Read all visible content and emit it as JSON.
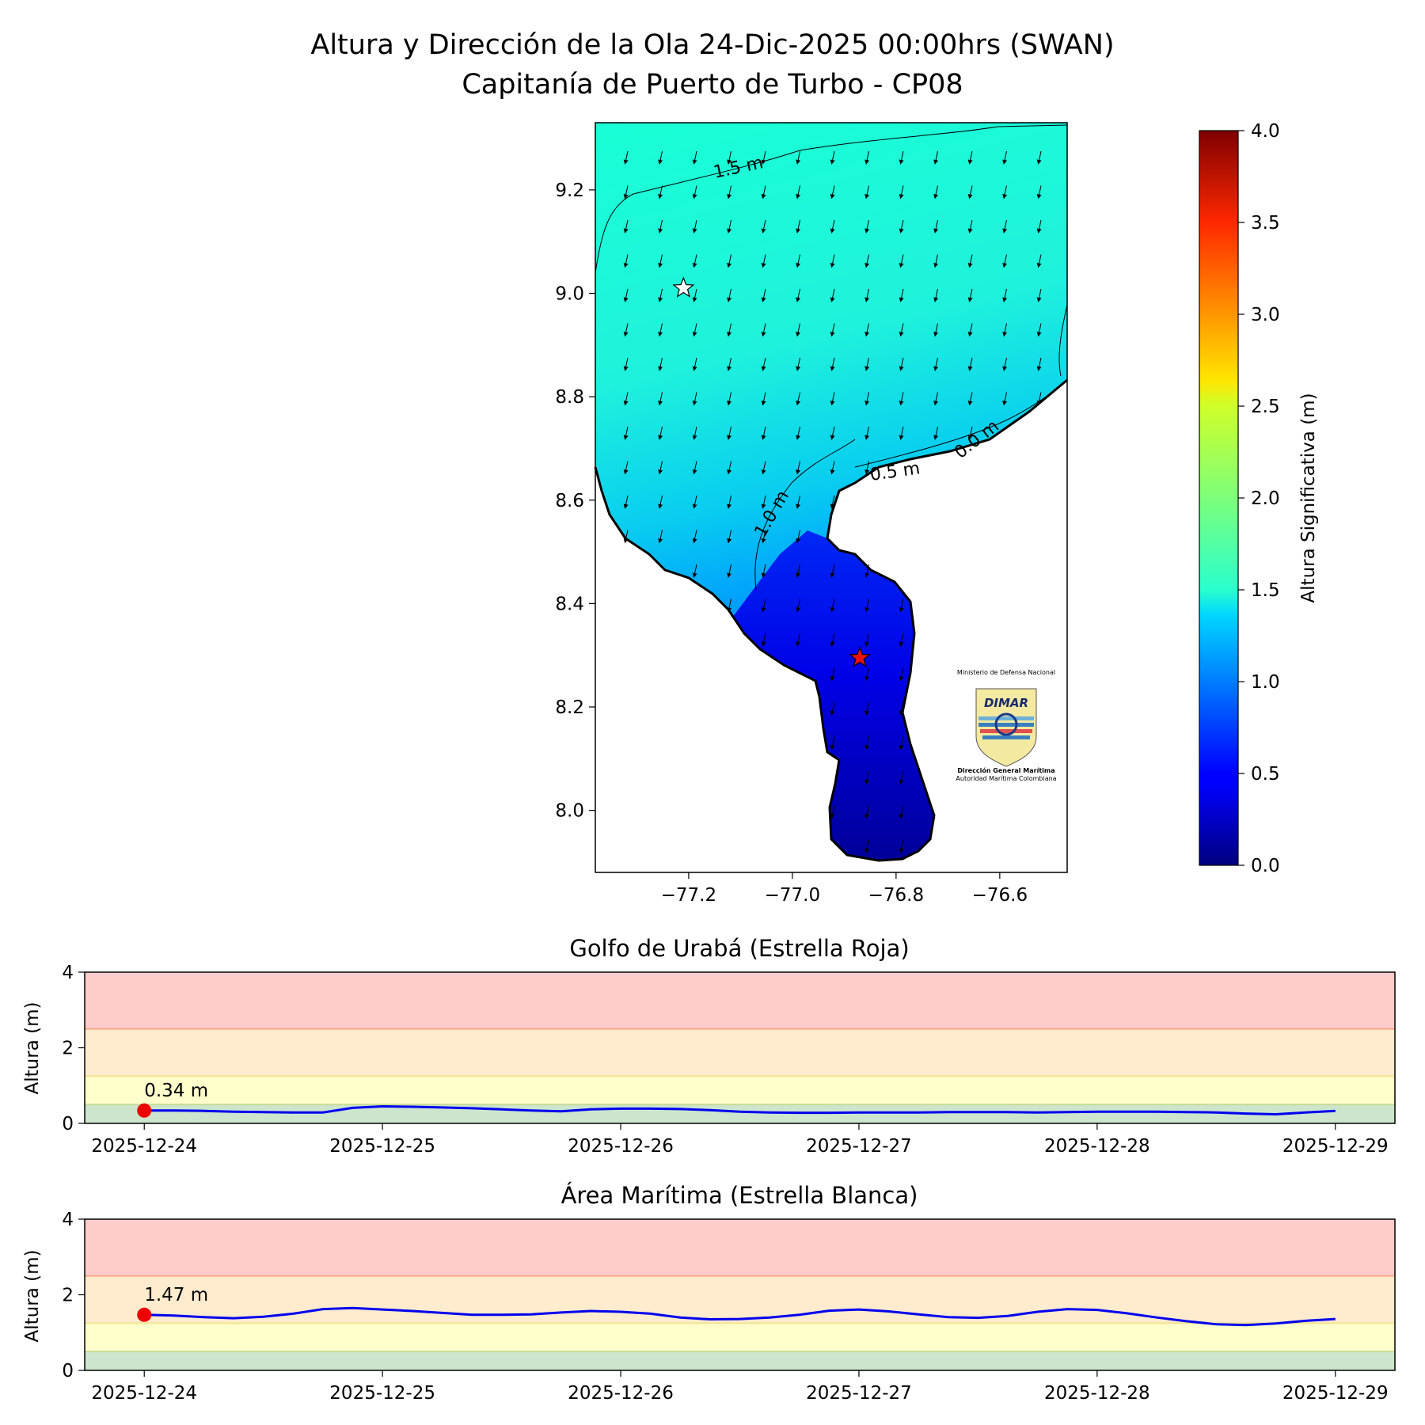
{
  "figure": {
    "title_line1": "Altura y Dirección de la Ola 24-Dic-2025 00:00hrs (SWAN)",
    "title_line2": "Capitanía de Puerto de Turbo - CP08"
  },
  "logo": {
    "text_top": "Ministerio de Defensa Nacional",
    "brand": "DIMAR",
    "text_bottom1": "Dirección General Marítima",
    "text_bottom2": "Autoridad Marítima Colombiana"
  },
  "chart_data": [
    {
      "type": "heatmap",
      "x_ticks": [
        -77.2,
        -77.0,
        -76.8,
        -76.6
      ],
      "x_tick_labels": [
        "−77.2",
        "−77.0",
        "−76.8",
        "−76.6"
      ],
      "y_ticks": [
        8.0,
        8.2,
        8.4,
        8.6,
        8.8,
        9.0,
        9.2
      ],
      "y_tick_labels": [
        "8.0",
        "8.2",
        "8.4",
        "8.6",
        "8.8",
        "9.0",
        "9.2"
      ],
      "xlim": [
        -77.38,
        -76.47
      ],
      "ylim": [
        7.88,
        9.33
      ],
      "contour_labels": [
        "1.5 m",
        "1.0 m",
        "0.5 m",
        "0.0 m"
      ],
      "markers": [
        {
          "name": "Estrella Blanca",
          "lon": -77.21,
          "lat": 9.01,
          "color": "#ffffff"
        },
        {
          "name": "Estrella Roja",
          "lon": -76.87,
          "lat": 8.295,
          "color": "#ee1111"
        }
      ],
      "wave_direction": "south-southwest",
      "colorbar": {
        "label": "Altura Significativa (m)",
        "range": [
          0,
          4.0
        ],
        "ticks": [
          0.0,
          0.5,
          1.0,
          1.5,
          2.0,
          2.5,
          3.0,
          3.5,
          4.0
        ],
        "tick_labels": [
          "0.0",
          "0.5",
          "1.0",
          "1.5",
          "2.0",
          "2.5",
          "3.0",
          "3.5",
          "4.0"
        ],
        "colormap": "jet"
      }
    },
    {
      "type": "line",
      "title": "Golfo de Urabá (Estrella Roja)",
      "ylabel": "Altura (m)",
      "ylim": [
        0,
        4
      ],
      "y_ticks": [
        0,
        2,
        4
      ],
      "xlim_days": [
        -0.25,
        5.25
      ],
      "x_tick_labels": [
        "2025-12-24",
        "2025-12-25",
        "2025-12-26",
        "2025-12-27",
        "2025-12-28",
        "2025-12-29"
      ],
      "bands": [
        {
          "from": 0,
          "to": 0.5,
          "color": "#cde5cd"
        },
        {
          "from": 0.5,
          "to": 1.25,
          "color": "#ffffcc"
        },
        {
          "from": 1.25,
          "to": 2.5,
          "color": "#ffebcd"
        },
        {
          "from": 2.5,
          "to": 4,
          "color": "#ffcccc"
        }
      ],
      "threshold_colors": [
        "#c8dc96",
        "#f2e391",
        "#f9a98a"
      ],
      "line_color": "#0000ee",
      "x": [
        0,
        0.125,
        0.25,
        0.375,
        0.5,
        0.625,
        0.75,
        0.875,
        1.0,
        1.125,
        1.25,
        1.375,
        1.5,
        1.625,
        1.75,
        1.875,
        2.0,
        2.125,
        2.25,
        2.375,
        2.5,
        2.625,
        2.75,
        2.875,
        3.0,
        3.125,
        3.25,
        3.375,
        3.5,
        3.625,
        3.75,
        3.875,
        4.0,
        4.125,
        4.25,
        4.375,
        4.5,
        4.625,
        4.75,
        4.875,
        5.0
      ],
      "values": [
        0.34,
        0.34,
        0.33,
        0.31,
        0.3,
        0.29,
        0.29,
        0.41,
        0.45,
        0.44,
        0.42,
        0.4,
        0.37,
        0.34,
        0.32,
        0.37,
        0.39,
        0.39,
        0.38,
        0.35,
        0.31,
        0.29,
        0.28,
        0.28,
        0.29,
        0.29,
        0.29,
        0.3,
        0.3,
        0.3,
        0.29,
        0.3,
        0.31,
        0.31,
        0.31,
        0.3,
        0.29,
        0.26,
        0.24,
        0.29,
        0.33
      ],
      "current_label": "0.34 m",
      "current_value": 0.34
    },
    {
      "type": "line",
      "title": "Área Marítima (Estrella Blanca)",
      "ylabel": "Altura (m)",
      "ylim": [
        0,
        4
      ],
      "y_ticks": [
        0,
        2,
        4
      ],
      "xlim_days": [
        -0.25,
        5.25
      ],
      "x_tick_labels": [
        "2025-12-24",
        "2025-12-25",
        "2025-12-26",
        "2025-12-27",
        "2025-12-28",
        "2025-12-29"
      ],
      "bands": [
        {
          "from": 0,
          "to": 0.5,
          "color": "#cde5cd"
        },
        {
          "from": 0.5,
          "to": 1.25,
          "color": "#ffffcc"
        },
        {
          "from": 1.25,
          "to": 2.5,
          "color": "#ffebcd"
        },
        {
          "from": 2.5,
          "to": 4,
          "color": "#ffcccc"
        }
      ],
      "threshold_colors": [
        "#c8dc96",
        "#f2e391",
        "#f9a98a"
      ],
      "line_color": "#0000ee",
      "x": [
        0,
        0.125,
        0.25,
        0.375,
        0.5,
        0.625,
        0.75,
        0.875,
        1.0,
        1.125,
        1.25,
        1.375,
        1.5,
        1.625,
        1.75,
        1.875,
        2.0,
        2.125,
        2.25,
        2.375,
        2.5,
        2.625,
        2.75,
        2.875,
        3.0,
        3.125,
        3.25,
        3.375,
        3.5,
        3.625,
        3.75,
        3.875,
        4.0,
        4.125,
        4.25,
        4.375,
        4.5,
        4.625,
        4.75,
        4.875,
        5.0
      ],
      "values": [
        1.47,
        1.45,
        1.41,
        1.38,
        1.42,
        1.5,
        1.62,
        1.65,
        1.61,
        1.57,
        1.52,
        1.47,
        1.47,
        1.48,
        1.53,
        1.57,
        1.55,
        1.5,
        1.4,
        1.35,
        1.36,
        1.4,
        1.47,
        1.58,
        1.61,
        1.56,
        1.48,
        1.41,
        1.39,
        1.44,
        1.55,
        1.62,
        1.6,
        1.51,
        1.4,
        1.3,
        1.22,
        1.2,
        1.24,
        1.31,
        1.36
      ],
      "current_label": "1.47 m",
      "current_value": 1.47
    }
  ]
}
